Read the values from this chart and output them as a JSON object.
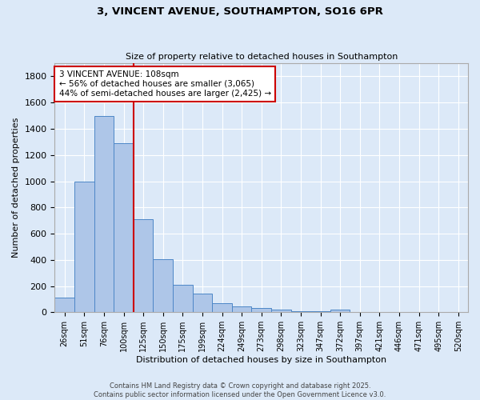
{
  "title_line1": "3, VINCENT AVENUE, SOUTHAMPTON, SO16 6PR",
  "title_line2": "Size of property relative to detached houses in Southampton",
  "xlabel": "Distribution of detached houses by size in Southampton",
  "ylabel": "Number of detached properties",
  "bar_labels": [
    "26sqm",
    "51sqm",
    "76sqm",
    "100sqm",
    "125sqm",
    "150sqm",
    "175sqm",
    "199sqm",
    "224sqm",
    "249sqm",
    "273sqm",
    "298sqm",
    "323sqm",
    "347sqm",
    "372sqm",
    "397sqm",
    "421sqm",
    "446sqm",
    "471sqm",
    "495sqm",
    "520sqm"
  ],
  "bar_values": [
    110,
    1000,
    1500,
    1290,
    710,
    405,
    210,
    140,
    70,
    42,
    35,
    18,
    10,
    10,
    18,
    0,
    0,
    0,
    0,
    0,
    0
  ],
  "bar_color": "#aec6e8",
  "bar_edge_color": "#4d87c7",
  "background_color": "#dce9f8",
  "grid_color": "#ffffff",
  "property_line_bar_idx": 3,
  "property_line_color": "#cc0000",
  "annotation_text": "3 VINCENT AVENUE: 108sqm\n← 56% of detached houses are smaller (3,065)\n44% of semi-detached houses are larger (2,425) →",
  "annotation_box_color": "#ffffff",
  "annotation_box_edge": "#cc0000",
  "ylim": [
    0,
    1900
  ],
  "yticks": [
    0,
    200,
    400,
    600,
    800,
    1000,
    1200,
    1400,
    1600,
    1800
  ],
  "footnote": "Contains HM Land Registry data © Crown copyright and database right 2025.\nContains public sector information licensed under the Open Government Licence v3.0."
}
